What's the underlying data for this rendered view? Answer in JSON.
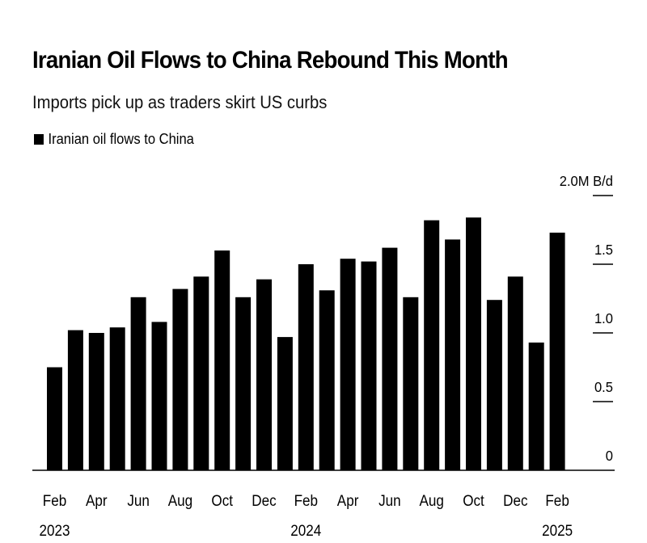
{
  "title": "Iranian Oil Flows to China Rebound This Month",
  "subtitle": "Imports pick up as traders skirt US curbs",
  "legend": {
    "label": "Iranian oil flows to China",
    "color": "#000000"
  },
  "chart_data": {
    "type": "bar",
    "title": "Iranian Oil Flows to China Rebound This Month",
    "subtitle": "Imports pick up as traders skirt US curbs",
    "unit": "M B/d",
    "categories": [
      "Feb 2023",
      "Mar 2023",
      "Apr 2023",
      "May 2023",
      "Jun 2023",
      "Jul 2023",
      "Aug 2023",
      "Sep 2023",
      "Oct 2023",
      "Nov 2023",
      "Dec 2023",
      "Jan 2024",
      "Feb 2024",
      "Mar 2024",
      "Apr 2024",
      "May 2024",
      "Jun 2024",
      "Jul 2024",
      "Aug 2024",
      "Sep 2024",
      "Oct 2024",
      "Nov 2024",
      "Dec 2024",
      "Jan 2025",
      "Feb 2025"
    ],
    "series": [
      {
        "name": "Iranian oil flows to China",
        "values": [
          0.75,
          1.02,
          1.0,
          1.04,
          1.26,
          1.08,
          1.32,
          1.41,
          1.6,
          1.26,
          1.39,
          0.97,
          1.5,
          1.31,
          1.54,
          1.52,
          1.62,
          1.26,
          1.82,
          1.68,
          1.84,
          1.24,
          1.41,
          0.93,
          1.73
        ]
      }
    ],
    "ylim": [
      0,
      2.0
    ],
    "y_ticks": [
      "0",
      "0.5",
      "1.0",
      "1.5",
      "2.0M B/d"
    ],
    "x_tick_labels": [
      {
        "month": "Feb",
        "year": "2023",
        "index": 0
      },
      {
        "month": "Apr",
        "year": "",
        "index": 2
      },
      {
        "month": "Jun",
        "year": "",
        "index": 4
      },
      {
        "month": "Aug",
        "year": "",
        "index": 6
      },
      {
        "month": "Oct",
        "year": "",
        "index": 8
      },
      {
        "month": "Dec",
        "year": "",
        "index": 10
      },
      {
        "month": "Feb",
        "year": "2024",
        "index": 12
      },
      {
        "month": "Apr",
        "year": "",
        "index": 14
      },
      {
        "month": "Jun",
        "year": "",
        "index": 16
      },
      {
        "month": "Aug",
        "year": "",
        "index": 18
      },
      {
        "month": "Oct",
        "year": "",
        "index": 20
      },
      {
        "month": "Dec",
        "year": "",
        "index": 22
      },
      {
        "month": "Feb",
        "year": "2025",
        "index": 24
      }
    ],
    "y_axis_position": "right",
    "grid": false,
    "bar_color": "#000000"
  }
}
